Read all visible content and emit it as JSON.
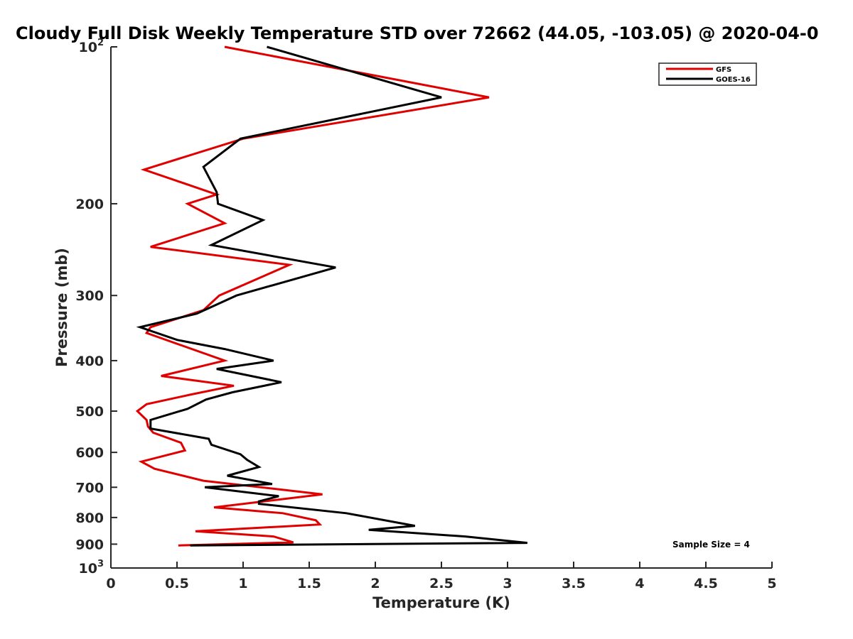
{
  "chart_data": {
    "type": "line",
    "title": "Cloudy Full Disk Weekly Temperature STD over 72662 (44.05, -103.05) @ 2020-04-0",
    "xlabel": "Temperature (K)",
    "ylabel": "Pressure (mb)",
    "xlim": [
      0,
      5
    ],
    "ylim": [
      100,
      1000
    ],
    "y_scale": "log",
    "y_reversed": true,
    "x_ticks": [
      0,
      0.5,
      1,
      1.5,
      2,
      2.5,
      3,
      3.5,
      4,
      4.5,
      5
    ],
    "x_tick_labels": [
      "0",
      "0.5",
      "1",
      "1.5",
      "2",
      "2.5",
      "3",
      "3.5",
      "4",
      "4.5",
      "5"
    ],
    "y_ticks": [
      100,
      200,
      300,
      400,
      500,
      600,
      700,
      800,
      900,
      1000
    ],
    "y_tick_labels": [
      {
        "base": "10",
        "exp": "2"
      },
      {
        "base": "200",
        "exp": ""
      },
      {
        "base": "300",
        "exp": ""
      },
      {
        "base": "400",
        "exp": ""
      },
      {
        "base": "500",
        "exp": ""
      },
      {
        "base": "600",
        "exp": ""
      },
      {
        "base": "700",
        "exp": ""
      },
      {
        "base": "800",
        "exp": ""
      },
      {
        "base": "900",
        "exp": ""
      },
      {
        "base": "10",
        "exp": "3"
      }
    ],
    "grid": false,
    "legend_position": "top-right",
    "annotation": "Sample Size = 4",
    "series": [
      {
        "name": "GFS",
        "color": "#e00000",
        "points": [
          [
            0.86,
            100
          ],
          [
            2.86,
            125
          ],
          [
            1.0,
            150
          ],
          [
            0.25,
            172
          ],
          [
            0.8,
            192
          ],
          [
            0.58,
            200
          ],
          [
            0.86,
            218
          ],
          [
            0.3,
            242
          ],
          [
            1.35,
            262
          ],
          [
            0.82,
            300
          ],
          [
            0.7,
            320
          ],
          [
            0.3,
            345
          ],
          [
            0.27,
            354
          ],
          [
            0.86,
            400
          ],
          [
            0.38,
            428
          ],
          [
            0.93,
            447
          ],
          [
            0.6,
            465
          ],
          [
            0.27,
            485
          ],
          [
            0.2,
            500
          ],
          [
            0.27,
            520
          ],
          [
            0.28,
            535
          ],
          [
            0.32,
            550
          ],
          [
            0.53,
            575
          ],
          [
            0.56,
            595
          ],
          [
            0.23,
            625
          ],
          [
            0.33,
            645
          ],
          [
            0.7,
            680
          ],
          [
            1.6,
            722
          ],
          [
            0.78,
            765
          ],
          [
            1.3,
            785
          ],
          [
            1.55,
            810
          ],
          [
            1.58,
            825
          ],
          [
            0.64,
            850
          ],
          [
            1.23,
            870
          ],
          [
            1.38,
            893
          ],
          [
            0.51,
            905
          ]
        ]
      },
      {
        "name": "GOES-16",
        "color": "#000000",
        "points": [
          [
            1.18,
            100
          ],
          [
            2.5,
            125
          ],
          [
            0.98,
            150
          ],
          [
            0.7,
            170
          ],
          [
            0.8,
            190
          ],
          [
            0.81,
            200
          ],
          [
            1.15,
            215
          ],
          [
            0.76,
            240
          ],
          [
            1.7,
            265
          ],
          [
            0.95,
            300
          ],
          [
            0.65,
            325
          ],
          [
            0.22,
            345
          ],
          [
            0.5,
            365
          ],
          [
            0.86,
            380
          ],
          [
            1.23,
            400
          ],
          [
            0.8,
            415
          ],
          [
            1.29,
            440
          ],
          [
            0.92,
            460
          ],
          [
            0.72,
            475
          ],
          [
            0.58,
            495
          ],
          [
            0.3,
            520
          ],
          [
            0.3,
            540
          ],
          [
            0.74,
            565
          ],
          [
            0.76,
            580
          ],
          [
            0.98,
            605
          ],
          [
            1.03,
            620
          ],
          [
            1.12,
            640
          ],
          [
            0.88,
            665
          ],
          [
            1.22,
            690
          ],
          [
            0.71,
            700
          ],
          [
            1.27,
            728
          ],
          [
            1.12,
            745
          ],
          [
            1.12,
            753
          ],
          [
            1.78,
            785
          ],
          [
            2.3,
            830
          ],
          [
            1.95,
            845
          ],
          [
            2.68,
            870
          ],
          [
            3.15,
            895
          ],
          [
            0.6,
            905
          ]
        ]
      }
    ]
  }
}
